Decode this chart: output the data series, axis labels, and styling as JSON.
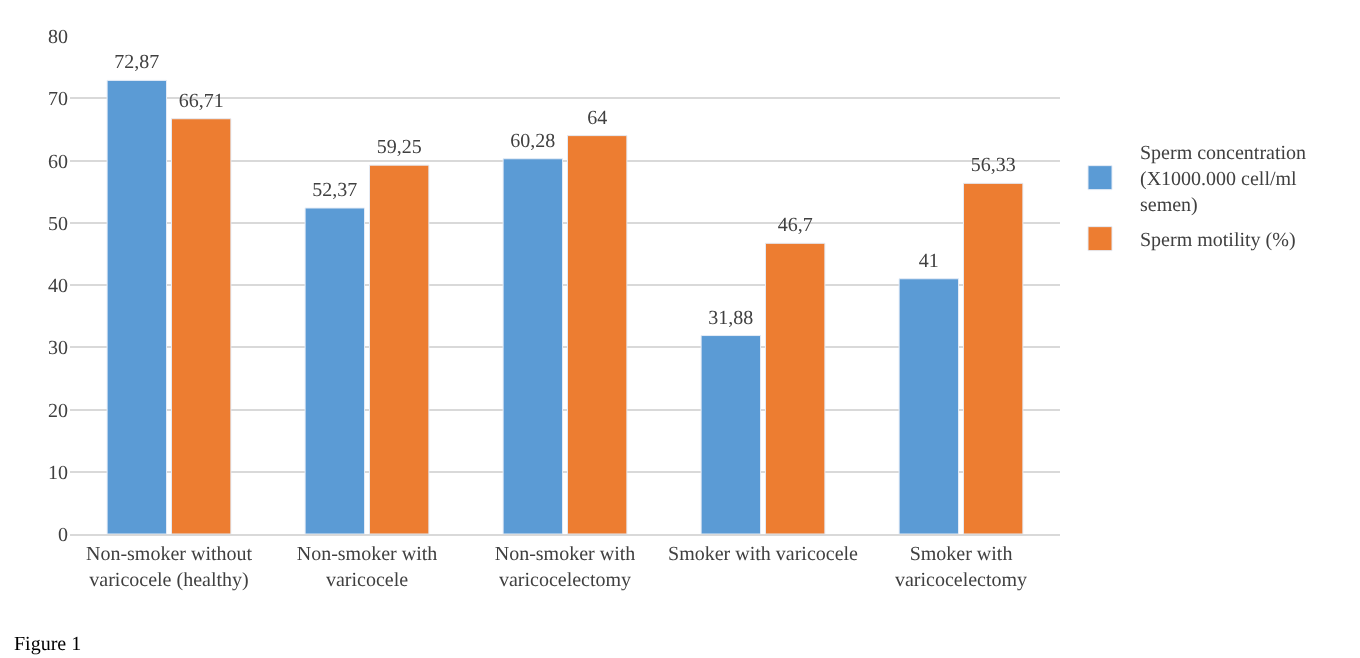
{
  "chart_data": {
    "type": "bar",
    "categories": [
      "Non-smoker without varicocele (healthy)",
      "Non-smoker with varicocele",
      "Non-smoker with varicocelectomy",
      "Smoker with varicocele",
      "Smoker with varicocelectomy"
    ],
    "series": [
      {
        "name": "Sperm concentration (X1000.000 cell/ml semen)",
        "color": "#5b9bd5",
        "values": [
          72.87,
          52.37,
          60.28,
          31.88,
          41
        ],
        "value_labels": [
          "72,87",
          "52,37",
          "60,28",
          "31,88",
          "41"
        ]
      },
      {
        "name": "Sperm motility (%)",
        "color": "#ed7d31",
        "values": [
          66.71,
          59.25,
          64,
          46.7,
          56.33
        ],
        "value_labels": [
          "66,71",
          "59,25",
          "64",
          "46,7",
          "56,33"
        ]
      }
    ],
    "ylim": [
      0,
      80
    ],
    "yticks": [
      0,
      10,
      20,
      30,
      40,
      50,
      60,
      70,
      80
    ],
    "grid": "y",
    "legend": "right",
    "annotations": [
      "Figure 1"
    ]
  }
}
